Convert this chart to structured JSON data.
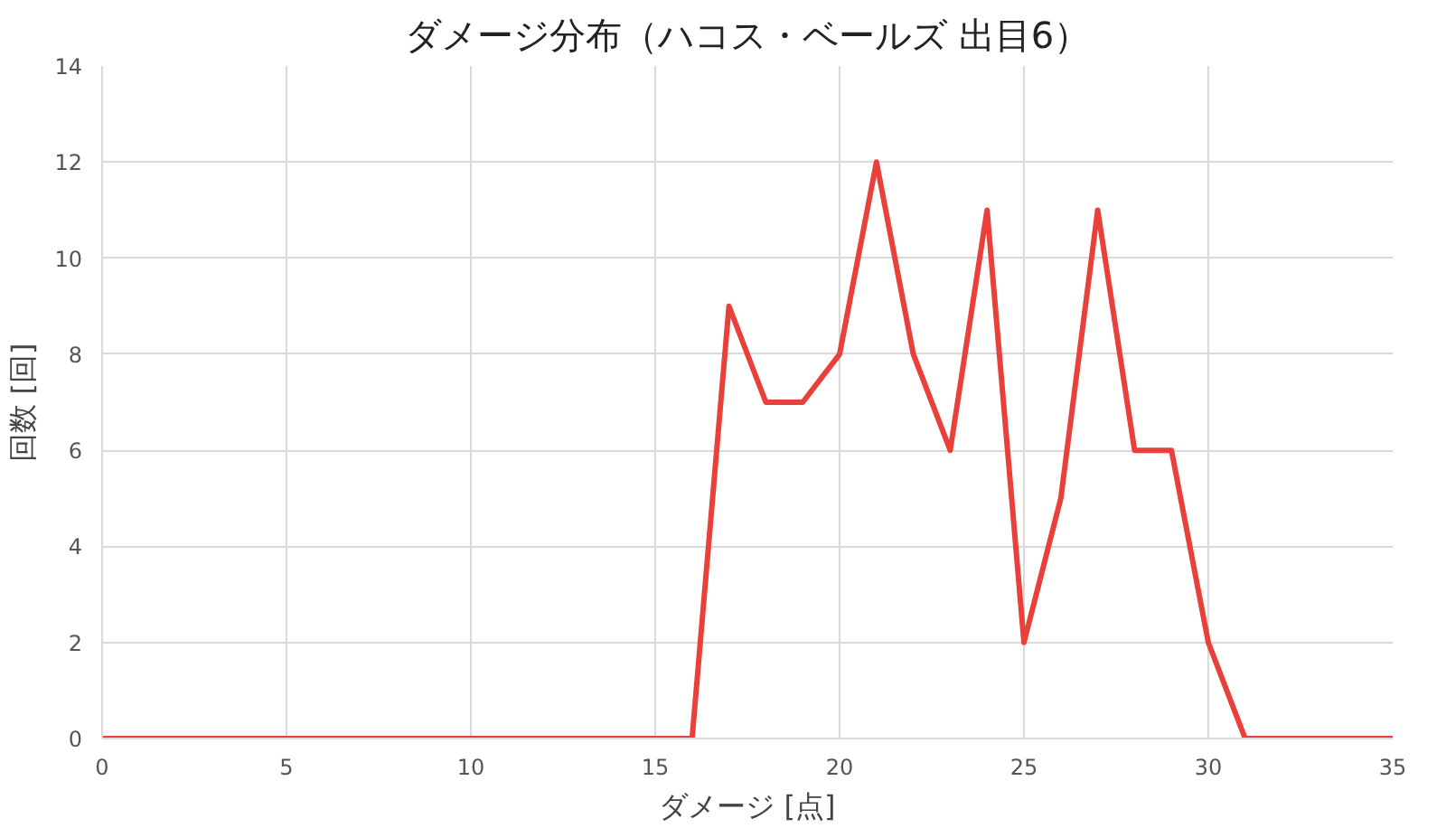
{
  "chart_data": {
    "type": "line",
    "title": "ダメージ分布（ハコス・ベールズ 出目6）",
    "xlabel": "ダメージ [点]",
    "ylabel": "回数 [回]",
    "x": [
      0,
      1,
      2,
      3,
      4,
      5,
      6,
      7,
      8,
      9,
      10,
      11,
      12,
      13,
      14,
      15,
      16,
      17,
      18,
      19,
      20,
      21,
      22,
      23,
      24,
      25,
      26,
      27,
      28,
      29,
      30,
      31,
      32,
      33,
      34,
      35
    ],
    "series": [
      {
        "color": "#e8403a",
        "values": [
          0,
          0,
          0,
          0,
          0,
          0,
          0,
          0,
          0,
          0,
          0,
          0,
          0,
          0,
          0,
          0,
          0,
          9,
          7,
          7,
          8,
          12,
          8,
          6,
          11,
          2,
          5,
          11,
          6,
          6,
          2,
          0,
          0,
          0,
          0,
          0
        ]
      }
    ],
    "xlim": [
      0,
      35
    ],
    "xticks": [
      0,
      5,
      10,
      15,
      20,
      25,
      30,
      35
    ],
    "ylim": [
      0,
      14
    ],
    "yticks": [
      0,
      2,
      4,
      6,
      8,
      10,
      12,
      14
    ],
    "grid": true,
    "marker": "none",
    "line_style": "solid"
  }
}
